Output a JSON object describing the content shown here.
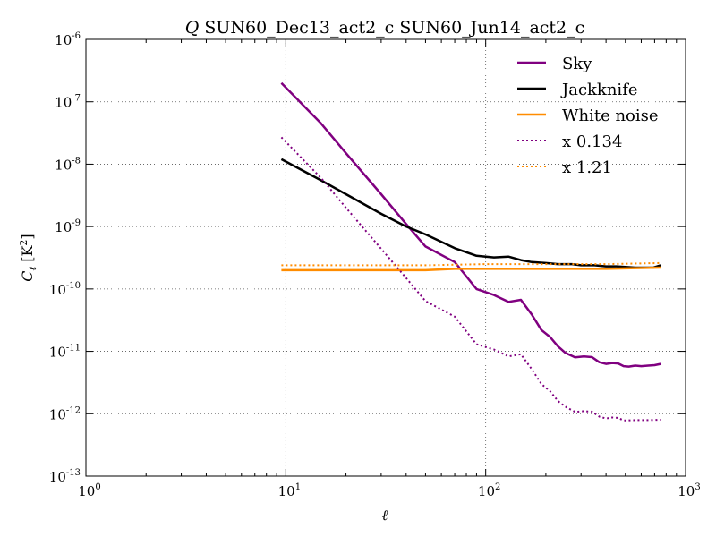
{
  "chart_data": {
    "type": "line",
    "title_symbol": "Q",
    "title": "SUN60_Dec13_act2_c SUN60_Jun14_act2_c",
    "xlabel": "ℓ",
    "ylabel": "C",
    "ylabel_sub": "ℓ",
    "ylabel_unit": "[K",
    "ylabel_unit_sup": "2",
    "ylabel_unit_close": "]",
    "xscale": "log",
    "yscale": "log",
    "xlim": [
      1,
      1000
    ],
    "ylim": [
      1e-13,
      1e-06
    ],
    "grid": true,
    "legend_position": "top-right",
    "x_ticks": [
      {
        "value": 1,
        "base": "10",
        "exp": "0"
      },
      {
        "value": 10,
        "base": "10",
        "exp": "1"
      },
      {
        "value": 100,
        "base": "10",
        "exp": "2"
      },
      {
        "value": 1000,
        "base": "10",
        "exp": "3"
      }
    ],
    "y_ticks": [
      {
        "value": 1e-13,
        "base": "10",
        "exp": "-13"
      },
      {
        "value": 1e-12,
        "base": "10",
        "exp": "-12"
      },
      {
        "value": 1e-11,
        "base": "10",
        "exp": "-11"
      },
      {
        "value": 1e-10,
        "base": "10",
        "exp": "-10"
      },
      {
        "value": 1e-09,
        "base": "10",
        "exp": "-9"
      },
      {
        "value": 1e-08,
        "base": "10",
        "exp": "-8"
      },
      {
        "value": 1e-07,
        "base": "10",
        "exp": "-7"
      },
      {
        "value": 1e-06,
        "base": "10",
        "exp": "-6"
      }
    ],
    "series": [
      {
        "name": "Sky",
        "color": "#800080",
        "style": "solid",
        "points": [
          [
            9.5,
            2e-07
          ],
          [
            15,
            4.5e-08
          ],
          [
            20,
            1.5e-08
          ],
          [
            30,
            3.3e-09
          ],
          [
            40,
            1.1e-09
          ],
          [
            50,
            4.8e-10
          ],
          [
            70,
            2.7e-10
          ],
          [
            90,
            1e-10
          ],
          [
            110,
            8e-11
          ],
          [
            130,
            6.2e-11
          ],
          [
            150,
            6.7e-11
          ],
          [
            170,
            3.9e-11
          ],
          [
            190,
            2.2e-11
          ],
          [
            210,
            1.7e-11
          ],
          [
            230,
            1.2e-11
          ],
          [
            250,
            9.5e-12
          ],
          [
            280,
            8e-12
          ],
          [
            310,
            8.3e-12
          ],
          [
            340,
            8.1e-12
          ],
          [
            370,
            6.7e-12
          ],
          [
            400,
            6.3e-12
          ],
          [
            430,
            6.5e-12
          ],
          [
            460,
            6.4e-12
          ],
          [
            490,
            5.8e-12
          ],
          [
            520,
            5.7e-12
          ],
          [
            560,
            5.9e-12
          ],
          [
            600,
            5.8e-12
          ],
          [
            650,
            5.9e-12
          ],
          [
            700,
            6e-12
          ],
          [
            750,
            6.3e-12
          ]
        ]
      },
      {
        "name": "Jackknife",
        "color": "#000000",
        "style": "solid",
        "points": [
          [
            9.5,
            1.2e-08
          ],
          [
            15,
            5.5e-09
          ],
          [
            20,
            3.3e-09
          ],
          [
            30,
            1.6e-09
          ],
          [
            40,
            1e-09
          ],
          [
            50,
            7.5e-10
          ],
          [
            70,
            4.5e-10
          ],
          [
            90,
            3.4e-10
          ],
          [
            110,
            3.2e-10
          ],
          [
            130,
            3.3e-10
          ],
          [
            150,
            2.9e-10
          ],
          [
            170,
            2.7e-10
          ],
          [
            200,
            2.6e-10
          ],
          [
            230,
            2.5e-10
          ],
          [
            270,
            2.5e-10
          ],
          [
            300,
            2.4e-10
          ],
          [
            350,
            2.4e-10
          ],
          [
            400,
            2.3e-10
          ],
          [
            450,
            2.3e-10
          ],
          [
            500,
            2.25e-10
          ],
          [
            560,
            2.2e-10
          ],
          [
            620,
            2.2e-10
          ],
          [
            690,
            2.2e-10
          ],
          [
            750,
            2.4e-10
          ]
        ]
      },
      {
        "name": "White noise",
        "color": "#ff8c00",
        "style": "solid",
        "points": [
          [
            9.5,
            2e-10
          ],
          [
            20,
            2e-10
          ],
          [
            50,
            2e-10
          ],
          [
            70,
            2.1e-10
          ],
          [
            100,
            2.1e-10
          ],
          [
            200,
            2.1e-10
          ],
          [
            400,
            2.1e-10
          ],
          [
            750,
            2.2e-10
          ]
        ]
      },
      {
        "name": "x 0.134",
        "color": "#800080",
        "style": "dotted",
        "points": [
          [
            9.5,
            2.7e-08
          ],
          [
            15,
            6e-09
          ],
          [
            20,
            2e-09
          ],
          [
            30,
            4.4e-10
          ],
          [
            40,
            1.5e-10
          ],
          [
            50,
            6.4e-11
          ],
          [
            70,
            3.6e-11
          ],
          [
            90,
            1.3e-11
          ],
          [
            110,
            1.07e-11
          ],
          [
            130,
            8.3e-12
          ],
          [
            150,
            9e-12
          ],
          [
            170,
            5.2e-12
          ],
          [
            190,
            3e-12
          ],
          [
            210,
            2.3e-12
          ],
          [
            230,
            1.6e-12
          ],
          [
            250,
            1.3e-12
          ],
          [
            280,
            1.07e-12
          ],
          [
            310,
            1.1e-12
          ],
          [
            340,
            1.08e-12
          ],
          [
            370,
            9e-13
          ],
          [
            400,
            8.4e-13
          ],
          [
            430,
            8.7e-13
          ],
          [
            460,
            8.6e-13
          ],
          [
            490,
            7.8e-13
          ],
          [
            560,
            7.9e-13
          ],
          [
            650,
            7.9e-13
          ],
          [
            750,
            8e-13
          ]
        ]
      },
      {
        "name": "x 1.21",
        "color": "#ff8c00",
        "style": "dotted",
        "points": [
          [
            9.5,
            2.4e-10
          ],
          [
            50,
            2.4e-10
          ],
          [
            100,
            2.5e-10
          ],
          [
            200,
            2.5e-10
          ],
          [
            400,
            2.5e-10
          ],
          [
            750,
            2.6e-10
          ]
        ]
      }
    ]
  }
}
